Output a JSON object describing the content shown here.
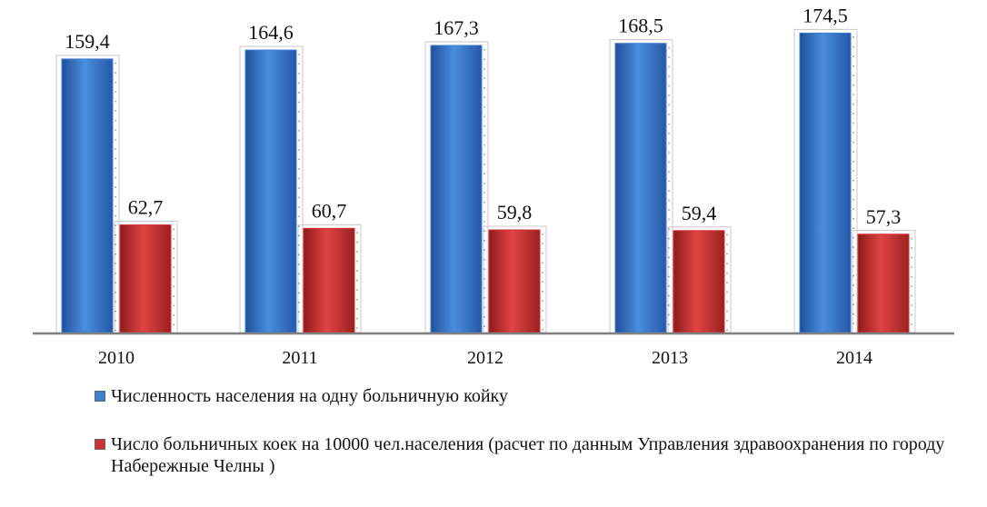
{
  "colors": {
    "series_1": "#3d7fd0",
    "series_2": "#cf3030",
    "axis": "#808080"
  },
  "chart_data": {
    "type": "bar",
    "title": "",
    "xlabel": "",
    "ylabel": "",
    "categories": [
      "2010",
      "2011",
      "2012",
      "2013",
      "2014"
    ],
    "series": [
      {
        "name": "Численность населения на одну больничную койку",
        "values": [
          159.4,
          164.6,
          167.3,
          168.5,
          174.5
        ],
        "labels": [
          "159,4",
          "164,6",
          "167,3",
          "168,5",
          "174,5"
        ]
      },
      {
        "name": "Число больничных коек на 10000 чел.населения (расчет по данным Управления здравоохранения по городу Набережные Челны )",
        "values": [
          62.7,
          60.7,
          59.8,
          59.4,
          57.3
        ],
        "labels": [
          "62,7",
          "60,7",
          "59,8",
          "59,4",
          "57,3"
        ]
      }
    ],
    "ylim": [
      0,
      180
    ],
    "grid": false,
    "legend_position": "bottom"
  }
}
